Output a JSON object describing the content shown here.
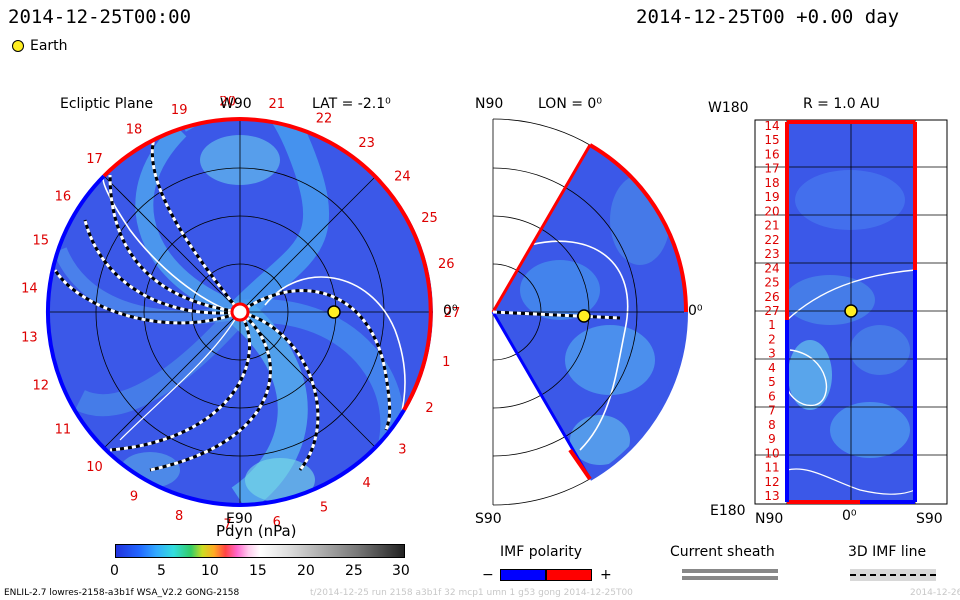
{
  "header": {
    "left_timestamp": "2014-12-25T00:00",
    "right_timestamp": "2014-12-25T00 +0.00 day",
    "legend_earth_label": "Earth"
  },
  "ecliptic_panel": {
    "title": "Ecliptic Plane",
    "top_label": "W90",
    "lat_label": "LAT = -2.1⁰",
    "right_label": "0⁰",
    "bottom_label": "E90",
    "day_labels": [
      "20",
      "21",
      "22",
      "23",
      "24",
      "25",
      "26",
      "27",
      "1",
      "2",
      "3",
      "4",
      "5",
      "6",
      "7",
      "8",
      "9",
      "10",
      "11",
      "12",
      "13",
      "14",
      "15",
      "16",
      "17",
      "18",
      "19"
    ]
  },
  "meridional_panel": {
    "top_label": "N90",
    "lon_label": "LON = 0⁰",
    "right_label": "0⁰",
    "bottom_label": "S90"
  },
  "r_panel": {
    "top_left_label": "W180",
    "title": "R = 1.0 AU",
    "bottom_left_label": "E180",
    "bottom_axis_labels": [
      "N90",
      "0⁰",
      "S90"
    ],
    "row_labels": [
      "14",
      "15",
      "16",
      "17",
      "18",
      "19",
      "20",
      "21",
      "22",
      "23",
      "24",
      "25",
      "26",
      "27",
      "1",
      "2",
      "3",
      "4",
      "5",
      "6",
      "7",
      "8",
      "9",
      "10",
      "11",
      "12",
      "13"
    ]
  },
  "colorbar": {
    "label": "Pdyn (nPa)",
    "ticks": [
      "0",
      "5",
      "10",
      "15",
      "20",
      "25",
      "30"
    ]
  },
  "legend": {
    "imf_polarity_label": "IMF polarity",
    "imf_minus": "−",
    "imf_plus": "+",
    "current_sheath_label": "Current sheath",
    "imf_line_label": "3D IMF line"
  },
  "footer": {
    "model_info": "ENLIL-2.7 lowres-2158-a3b1f WSA_V2.2 GONG-2158",
    "run_path": "t/2014-12-25 run 2158 a3b1f 32 mcp1 umn 1 g53 gong 2014-12-25T00",
    "right_fragment": "2014-12-26"
  },
  "colors": {
    "background_blue": "#3b58e8",
    "polarity_negative": "#0000ff",
    "polarity_positive": "#ff0000",
    "earth": "#ffee22"
  }
}
